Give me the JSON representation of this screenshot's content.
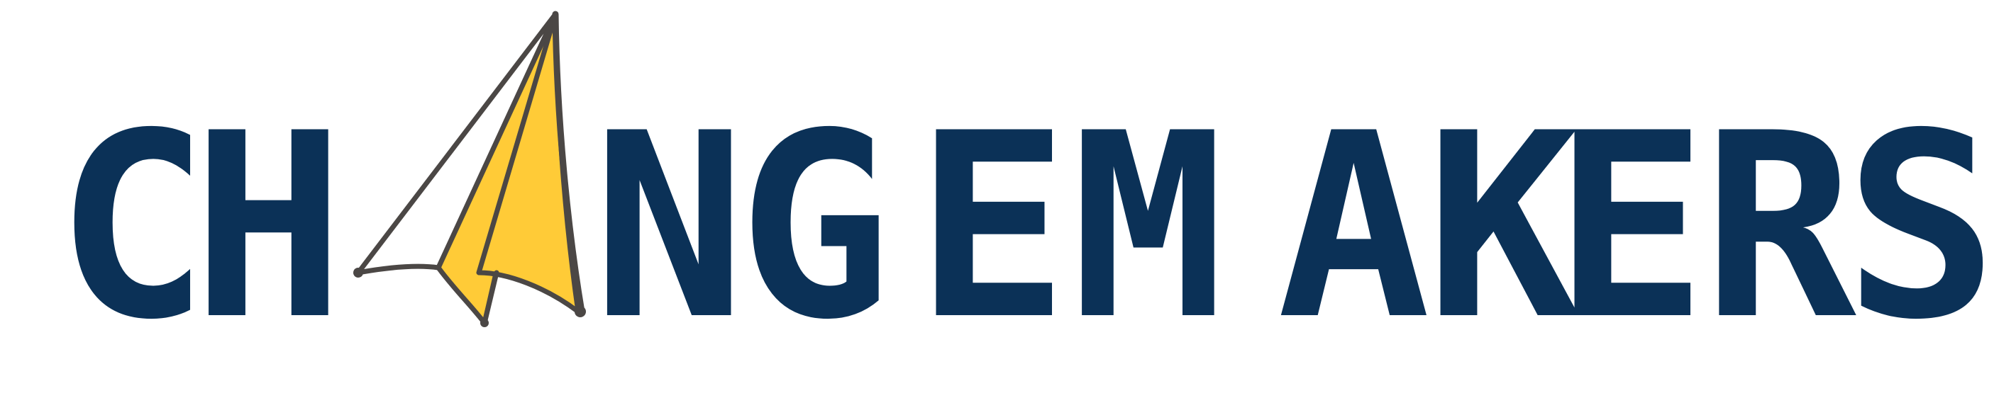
{
  "logo": {
    "wordmark": "CHANGEMAKERS",
    "replaced_letter": "A",
    "replacement_icon": "paper-plane-icon",
    "colors": {
      "text": "#0b3157",
      "plane_fill": "#ffffff",
      "plane_accent": "#ffcb37",
      "plane_outline": "#4b4745"
    }
  }
}
